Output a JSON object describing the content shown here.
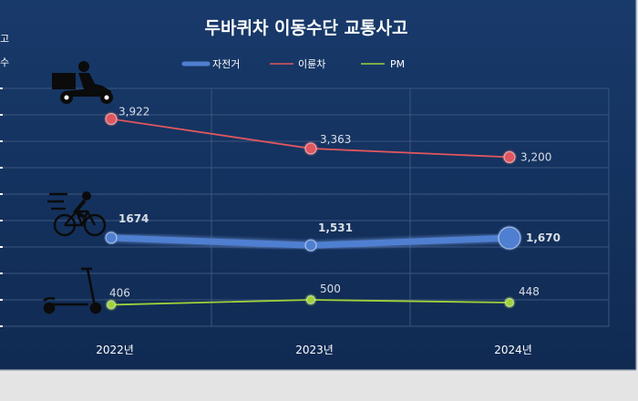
{
  "chart_data": {
    "type": "line",
    "title": "두바퀴차 이동수단 교통사고",
    "ylabel_lines": [
      "고",
      "수"
    ],
    "categories": [
      "2022년",
      "2023년",
      "2024년"
    ],
    "series": [
      {
        "name": "자전거",
        "values": [
          1674,
          1531,
          1670
        ],
        "labels": [
          "1674",
          "1,531",
          "1,670"
        ],
        "color": "#4f7fd1",
        "icon": "bicycle-icon"
      },
      {
        "name": "이륜차",
        "values": [
          3922,
          3363,
          3200
        ],
        "labels": [
          "3,922",
          "3,363",
          "3,200"
        ],
        "color": "#e0565e",
        "icon": "delivery-motorcycle-icon"
      },
      {
        "name": "PM",
        "values": [
          406,
          500,
          448
        ],
        "labels": [
          "406",
          "500",
          "448"
        ],
        "color": "#9fd13a",
        "icon": "kick-scooter-icon"
      }
    ],
    "ylim": [
      0,
      4500
    ],
    "grid": true,
    "legend": "top-center"
  },
  "colors": {
    "background": "#13305a",
    "grid": "#3b557e",
    "text": "#ffffff",
    "label": "#d8dde6"
  }
}
